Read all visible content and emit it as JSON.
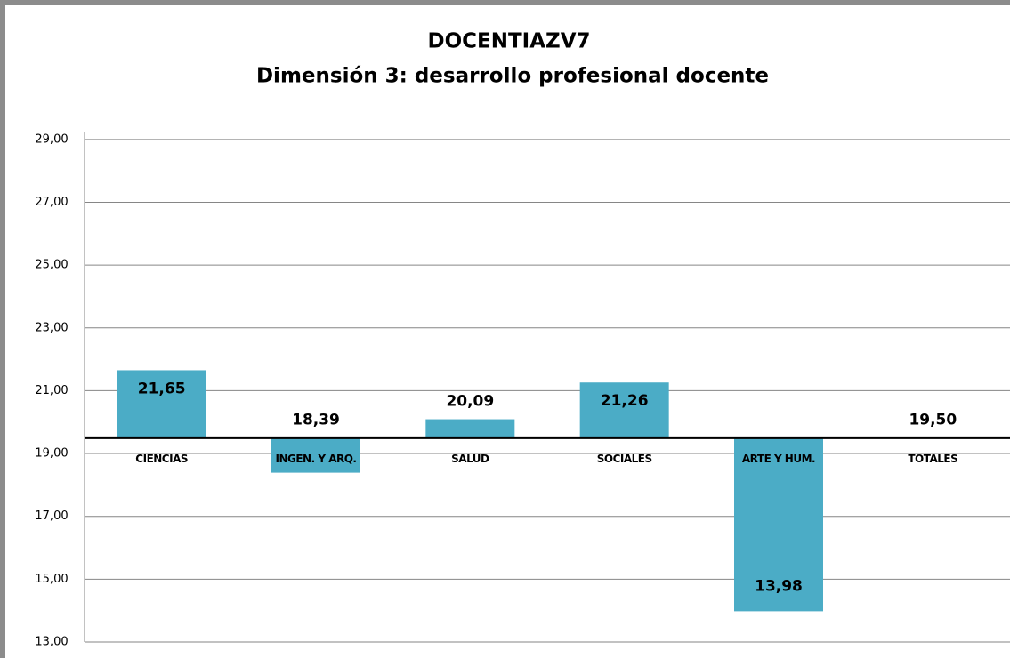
{
  "chart_data": {
    "type": "bar",
    "title": "DOCENTIAZV7",
    "subtitle": "Dimensión 3: desarrollo profesional docente",
    "categories": [
      "CIENCIAS",
      "INGEN. Y ARQ.",
      "SALUD",
      "SOCIALES",
      "ARTE Y HUM.",
      "TOTALES"
    ],
    "values": [
      21.65,
      18.39,
      20.09,
      21.26,
      13.98,
      19.5
    ],
    "value_labels": [
      "21,65",
      "18,39",
      "20,09",
      "21,26",
      "13,98",
      "19,50"
    ],
    "color": "#4bacc6",
    "baseline": 19.5,
    "ylim": [
      13,
      29.25
    ],
    "yticks": [
      {
        "value": 13,
        "label": "13,00"
      },
      {
        "value": 15,
        "label": "15,00"
      },
      {
        "value": 17,
        "label": "17,00"
      },
      {
        "value": 19,
        "label": "19,00"
      },
      {
        "value": 21,
        "label": "21,00"
      },
      {
        "value": 23,
        "label": "23,00"
      },
      {
        "value": 25,
        "label": "25,00"
      },
      {
        "value": 27,
        "label": "27,00"
      },
      {
        "value": 29,
        "label": "29,00"
      }
    ],
    "grid": true
  }
}
